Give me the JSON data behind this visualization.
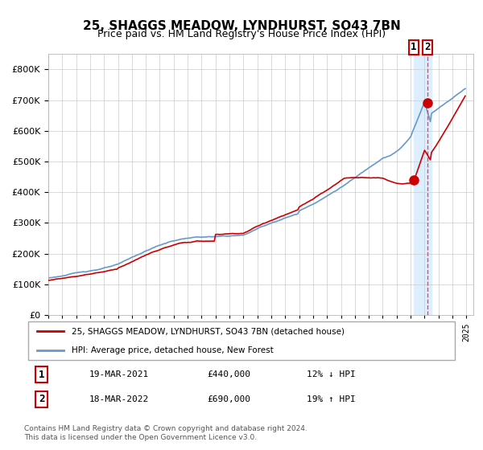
{
  "title": "25, SHAGGS MEADOW, LYNDHURST, SO43 7BN",
  "subtitle": "Price paid vs. HM Land Registry's House Price Index (HPI)",
  "legend_label1": "25, SHAGGS MEADOW, LYNDHURST, SO43 7BN (detached house)",
  "legend_label2": "HPI: Average price, detached house, New Forest",
  "transaction1_date": "19-MAR-2021",
  "transaction1_price": 440000,
  "transaction1_hpi": "12% ↓ HPI",
  "transaction2_date": "18-MAR-2022",
  "transaction2_price": 690000,
  "transaction2_hpi": "19% ↑ HPI",
  "footer": "Contains HM Land Registry data © Crown copyright and database right 2024.\nThis data is licensed under the Open Government Licence v3.0.",
  "line1_color": "#cc0000",
  "line2_color": "#6699cc",
  "grid_color": "#cccccc",
  "background_color": "#ffffff",
  "highlight_color": "#ddeeff",
  "dashed_line_color": "#ff4444",
  "ylim": [
    0,
    850000
  ],
  "start_year": 1995,
  "end_year": 2025
}
